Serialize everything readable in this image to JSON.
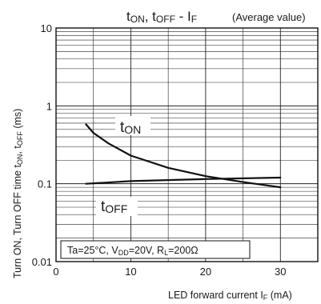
{
  "chart_data": {
    "type": "line",
    "title": "tON, tOFF - IF",
    "title_note": "(Average value)",
    "xlabel": "LED forward current IF (mA)",
    "ylabel": "Turn ON, Turn OFF time tON, tOFF (ms)",
    "xlim": [
      0,
      35
    ],
    "ylim": [
      0.01,
      10
    ],
    "yscale": "log",
    "grid": true,
    "x_ticks": [
      "0",
      "10",
      "20",
      "30"
    ],
    "y_ticks": [
      "10",
      "1",
      "0.1",
      "0.01"
    ],
    "conditions": "Ta=25°C, VDD=20V, RL=200Ω",
    "series": [
      {
        "name": "tON",
        "x": [
          4,
          5,
          7,
          10,
          15,
          20,
          25,
          30
        ],
        "y": [
          0.58,
          0.45,
          0.33,
          0.23,
          0.16,
          0.125,
          0.105,
          0.09
        ]
      },
      {
        "name": "tOFF",
        "x": [
          4,
          10,
          20,
          30
        ],
        "y": [
          0.1,
          0.108,
          0.115,
          0.12
        ]
      }
    ]
  }
}
